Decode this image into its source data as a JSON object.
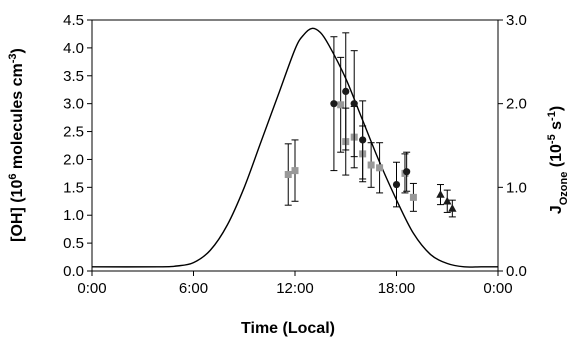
{
  "chart_data": {
    "type": "scatter",
    "xlabel": "Time (Local)",
    "ylabel_left": {
      "main": "[OH] (10",
      "sup1": "6",
      "mid": " molecules cm",
      "sup2": "-3",
      "end": ")"
    },
    "ylabel_right": {
      "main": "J",
      "sub": "Ozone",
      "mid": " (10",
      "sup1": "-5",
      "mid2": " s",
      "sup2": "-1",
      "end": ")"
    },
    "x_ticks": [
      {
        "value": 0,
        "label": "0:00"
      },
      {
        "value": 6,
        "label": "6:00"
      },
      {
        "value": 12,
        "label": "12:00"
      },
      {
        "value": 18,
        "label": "18:00"
      },
      {
        "value": 24,
        "label": "0:00"
      }
    ],
    "y_left_ticks": [
      "0.0",
      "0.5",
      "1.0",
      "1.5",
      "2.0",
      "2.5",
      "3.0",
      "3.5",
      "4.0",
      "4.5"
    ],
    "y_right_ticks": [
      "0.0",
      "1.0",
      "2.0",
      "3.0"
    ],
    "xlim": [
      0,
      24
    ],
    "ylim_left": [
      0,
      4.5
    ],
    "ylim_right": [
      0,
      3.0
    ],
    "grid": false,
    "series": [
      {
        "marker": "square",
        "color": "#999999",
        "axis": "left",
        "points": [
          {
            "x": 11.6,
            "y": 1.73,
            "err": 0.55
          },
          {
            "x": 12.0,
            "y": 1.8,
            "err": 0.55
          },
          {
            "x": 14.7,
            "y": 2.98,
            "err": 0.85
          },
          {
            "x": 15.0,
            "y": 2.32,
            "err": 0.6
          },
          {
            "x": 15.5,
            "y": 2.4,
            "err": 0.55
          },
          {
            "x": 16.0,
            "y": 2.1,
            "err": 0.5
          },
          {
            "x": 16.5,
            "y": 1.9,
            "err": 0.4
          },
          {
            "x": 17.0,
            "y": 1.85,
            "err": 0.45
          },
          {
            "x": 18.5,
            "y": 1.75,
            "err": 0.35
          },
          {
            "x": 19.0,
            "y": 1.32,
            "err": 0.25
          }
        ]
      },
      {
        "marker": "circle",
        "color": "#1a1a1a",
        "axis": "left",
        "points": [
          {
            "x": 14.3,
            "y": 3.0,
            "err": 1.2
          },
          {
            "x": 15.0,
            "y": 3.22,
            "err": 1.05
          },
          {
            "x": 15.5,
            "y": 3.0,
            "err": 0.95
          },
          {
            "x": 16.0,
            "y": 2.35,
            "err": 0.7
          },
          {
            "x": 18.0,
            "y": 1.55,
            "err": 0.4
          },
          {
            "x": 18.6,
            "y": 1.78,
            "err": 0.35
          }
        ]
      },
      {
        "marker": "triangle",
        "color": "#1a1a1a",
        "axis": "left",
        "points": [
          {
            "x": 20.6,
            "y": 1.37,
            "err": 0.18
          },
          {
            "x": 21.0,
            "y": 1.25,
            "err": 0.2
          },
          {
            "x": 21.3,
            "y": 1.12,
            "err": 0.15
          }
        ]
      }
    ],
    "j_ozone_curve": {
      "axis": "right",
      "color": "#000000",
      "x": [
        0,
        4,
        5,
        6,
        7,
        8,
        9,
        10,
        11,
        12,
        12.5,
        13,
        13.5,
        14,
        15,
        16,
        17,
        18,
        19,
        20,
        21,
        22,
        23,
        24
      ],
      "values": [
        0.05,
        0.05,
        0.06,
        0.1,
        0.25,
        0.55,
        1.0,
        1.55,
        2.1,
        2.65,
        2.82,
        2.9,
        2.85,
        2.7,
        2.3,
        1.8,
        1.3,
        0.85,
        0.45,
        0.2,
        0.09,
        0.05,
        0.05,
        0.05
      ]
    }
  }
}
